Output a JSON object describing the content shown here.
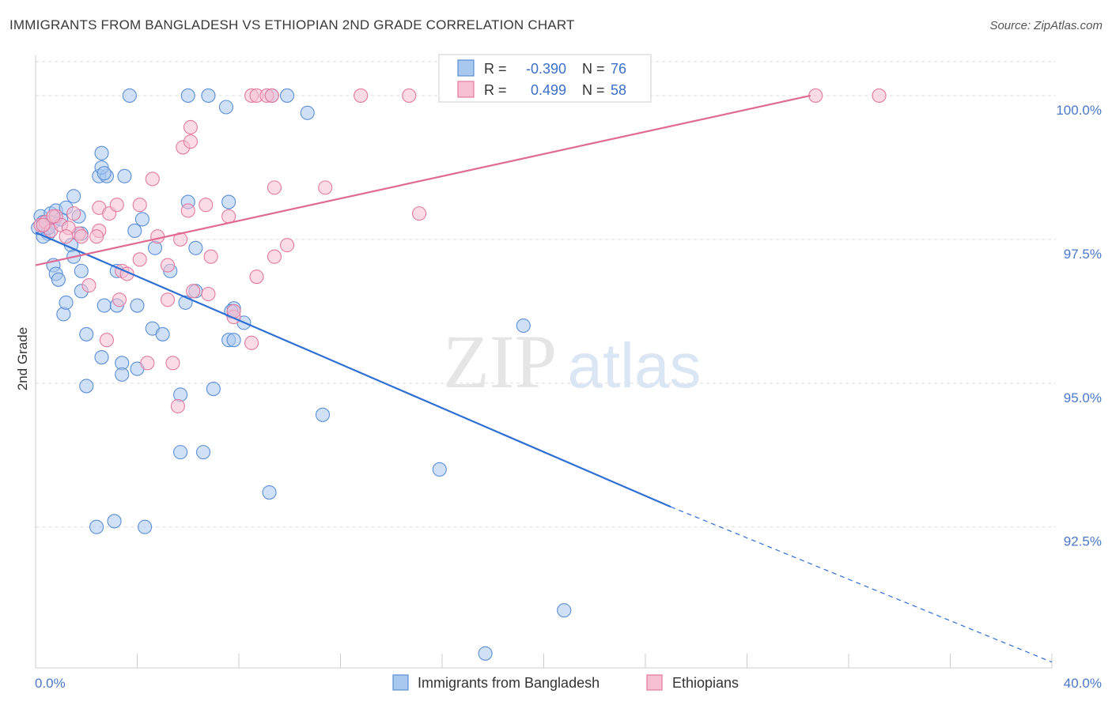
{
  "title": "IMMIGRANTS FROM BANGLADESH VS ETHIOPIAN 2ND GRADE CORRELATION CHART",
  "source": "Source: ZipAtlas.com",
  "watermark": {
    "zip": "ZIP",
    "atlas": "atlas"
  },
  "legend": {
    "rows": [
      {
        "r_label": "R =",
        "r_value": "-0.390",
        "n_label": "N =",
        "n_value": "76"
      },
      {
        "r_label": "R =",
        "r_value": "0.499",
        "n_label": "N =",
        "n_value": "58"
      }
    ]
  },
  "colors": {
    "blue_fill": "#a9c8f0",
    "blue_stroke": "#5b8fd6",
    "blue_line": "#2e6fd4",
    "pink_fill": "#f7bfd2",
    "pink_stroke": "#e27aa0",
    "pink_line": "#e06a93",
    "label_blue": "#4a78c8",
    "grid": "#dddddd"
  },
  "chart_data": {
    "type": "scatter",
    "title": "IMMIGRANTS FROM BANGLADESH VS ETHIOPIAN 2ND GRADE CORRELATION CHART",
    "xlabel": "",
    "ylabel": "2nd Grade",
    "xlim": [
      0,
      40
    ],
    "ylim": [
      90.05,
      100.7
    ],
    "x_tick_labels": [
      "0.0%",
      "40.0%"
    ],
    "y_ticks": [
      {
        "value": 100.0,
        "label": "100.0%"
      },
      {
        "value": 97.5,
        "label": "97.5%"
      },
      {
        "value": 95.0,
        "label": "95.0%"
      },
      {
        "value": 92.5,
        "label": "92.5%"
      }
    ],
    "grid": true,
    "legend_position": "top-center and bottom",
    "series": [
      {
        "name": "Immigrants from Bangladesh",
        "color": "blue",
        "R": -0.39,
        "N": 76,
        "trend": {
          "x0": 0.0,
          "y0": 97.62,
          "x1": 25.0,
          "y1": 92.85,
          "dashed_to_x": 40.0,
          "dashed_to_y": 90.15
        },
        "points": [
          [
            0.2,
            97.9
          ],
          [
            0.3,
            97.8
          ],
          [
            0.4,
            97.7
          ],
          [
            0.5,
            97.6
          ],
          [
            0.6,
            97.95
          ],
          [
            0.3,
            97.55
          ],
          [
            0.7,
            97.8
          ],
          [
            0.8,
            98.0
          ],
          [
            1.0,
            97.85
          ],
          [
            1.2,
            98.05
          ],
          [
            1.5,
            98.25
          ],
          [
            1.7,
            97.9
          ],
          [
            2.5,
            98.6
          ],
          [
            2.8,
            98.6
          ],
          [
            2.6,
            98.75
          ],
          [
            2.7,
            98.65
          ],
          [
            3.5,
            98.6
          ],
          [
            2.6,
            99.0
          ],
          [
            1.4,
            97.4
          ],
          [
            1.8,
            97.6
          ],
          [
            0.7,
            97.05
          ],
          [
            0.8,
            96.9
          ],
          [
            0.9,
            96.8
          ],
          [
            1.5,
            97.2
          ],
          [
            1.8,
            96.95
          ],
          [
            1.1,
            96.2
          ],
          [
            1.2,
            96.4
          ],
          [
            1.8,
            96.6
          ],
          [
            2.7,
            96.35
          ],
          [
            3.2,
            96.35
          ],
          [
            3.2,
            96.95
          ],
          [
            4.0,
            96.35
          ],
          [
            4.2,
            97.85
          ],
          [
            3.9,
            97.65
          ],
          [
            4.7,
            97.35
          ],
          [
            5.3,
            96.95
          ],
          [
            5.9,
            96.4
          ],
          [
            6.3,
            96.6
          ],
          [
            6.3,
            97.35
          ],
          [
            6.0,
            98.15
          ],
          [
            7.6,
            98.15
          ],
          [
            7.8,
            96.3
          ],
          [
            7.7,
            96.25
          ],
          [
            8.2,
            96.05
          ],
          [
            7.6,
            95.75
          ],
          [
            7.8,
            95.75
          ],
          [
            4.6,
            95.95
          ],
          [
            5.0,
            95.85
          ],
          [
            2.0,
            95.85
          ],
          [
            2.6,
            95.45
          ],
          [
            3.4,
            95.35
          ],
          [
            4.0,
            95.25
          ],
          [
            3.4,
            95.15
          ],
          [
            2.0,
            94.95
          ],
          [
            5.7,
            94.8
          ],
          [
            7.0,
            94.9
          ],
          [
            11.3,
            94.45
          ],
          [
            5.7,
            93.8
          ],
          [
            6.6,
            93.8
          ],
          [
            15.9,
            93.5
          ],
          [
            9.2,
            93.1
          ],
          [
            3.1,
            92.6
          ],
          [
            2.4,
            92.5
          ],
          [
            4.3,
            92.5
          ],
          [
            19.2,
            96.0
          ],
          [
            20.8,
            91.05
          ],
          [
            17.7,
            90.3
          ],
          [
            3.7,
            100.0
          ],
          [
            6.0,
            100.0
          ],
          [
            6.8,
            100.0
          ],
          [
            7.5,
            99.8
          ],
          [
            9.3,
            100.0
          ],
          [
            9.9,
            100.0
          ],
          [
            10.7,
            99.7
          ],
          [
            0.1,
            97.7
          ],
          [
            0.5,
            97.7
          ]
        ]
      },
      {
        "name": "Ethiopians",
        "color": "pink",
        "R": 0.499,
        "N": 58,
        "trend": {
          "x0": 0.0,
          "y0": 97.05,
          "x1": 30.5,
          "y1": 100.0
        },
        "points": [
          [
            0.2,
            97.75
          ],
          [
            0.4,
            97.8
          ],
          [
            0.6,
            97.65
          ],
          [
            0.8,
            97.9
          ],
          [
            1.0,
            97.75
          ],
          [
            1.5,
            97.95
          ],
          [
            1.7,
            97.6
          ],
          [
            1.8,
            97.55
          ],
          [
            2.5,
            97.65
          ],
          [
            2.4,
            97.55
          ],
          [
            2.5,
            98.05
          ],
          [
            2.9,
            97.95
          ],
          [
            3.2,
            98.1
          ],
          [
            4.1,
            98.1
          ],
          [
            4.6,
            98.55
          ],
          [
            4.8,
            97.55
          ],
          [
            5.2,
            97.05
          ],
          [
            5.7,
            97.5
          ],
          [
            6.0,
            98.0
          ],
          [
            6.7,
            98.1
          ],
          [
            7.6,
            97.9
          ],
          [
            6.9,
            97.2
          ],
          [
            9.4,
            98.4
          ],
          [
            11.4,
            98.4
          ],
          [
            15.1,
            97.95
          ],
          [
            9.4,
            97.2
          ],
          [
            9.9,
            97.4
          ],
          [
            8.7,
            96.85
          ],
          [
            6.2,
            96.6
          ],
          [
            6.8,
            96.55
          ],
          [
            5.2,
            96.45
          ],
          [
            3.3,
            96.45
          ],
          [
            3.4,
            96.95
          ],
          [
            3.6,
            96.9
          ],
          [
            4.1,
            97.15
          ],
          [
            2.1,
            96.7
          ],
          [
            7.8,
            96.15
          ],
          [
            7.8,
            96.25
          ],
          [
            8.5,
            95.7
          ],
          [
            2.8,
            95.75
          ],
          [
            4.4,
            95.35
          ],
          [
            5.4,
            95.35
          ],
          [
            5.6,
            94.6
          ],
          [
            5.8,
            99.1
          ],
          [
            6.1,
            99.2
          ],
          [
            6.1,
            99.45
          ],
          [
            8.5,
            100.0
          ],
          [
            8.7,
            100.0
          ],
          [
            9.1,
            100.0
          ],
          [
            9.3,
            100.0
          ],
          [
            12.8,
            100.0
          ],
          [
            14.7,
            100.0
          ],
          [
            30.7,
            100.0
          ],
          [
            33.2,
            100.0
          ],
          [
            0.7,
            97.9
          ],
          [
            1.3,
            97.7
          ],
          [
            1.2,
            97.55
          ],
          [
            0.3,
            97.75
          ]
        ]
      }
    ]
  },
  "bottom_legend": [
    "Immigrants from Bangladesh",
    "Ethiopians"
  ]
}
